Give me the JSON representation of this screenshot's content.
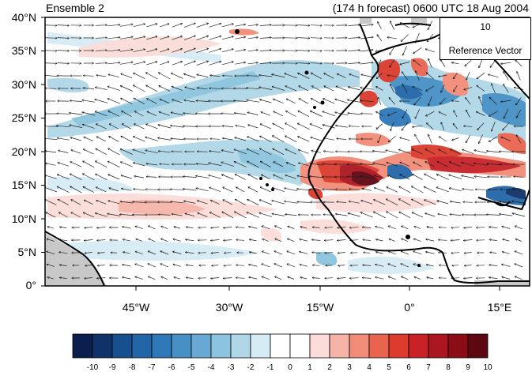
{
  "title_left": "Ensemble 2",
  "title_right": "(174 h forecast) 0600 UTC 18 Aug 2004",
  "lat_labels": [
    "40°N",
    "35°N",
    "30°N",
    "25°N",
    "20°N",
    "15°N",
    "10°N",
    "5°N",
    "0°"
  ],
  "lon_labels": [
    "45°W",
    "30°W",
    "15°W",
    "0°",
    "15°E"
  ],
  "reference_vector": {
    "value": "10",
    "label": "Reference Vector"
  },
  "colorbar": {
    "labels": [
      "-10",
      "-9",
      "-8",
      "-7",
      "-6",
      "-5",
      "-4",
      "-3",
      "-2",
      "-1",
      "0",
      "1",
      "2",
      "3",
      "4",
      "5",
      "6",
      "7",
      "8",
      "9",
      "10"
    ],
    "colors": [
      "#0a1f4d",
      "#0f3268",
      "#174f8f",
      "#2266a8",
      "#2e78b8",
      "#4690c6",
      "#67a8d4",
      "#8cc3de",
      "#afd7e8",
      "#d6ecf5",
      "#ffffff",
      "#ffffff",
      "#fbdcd9",
      "#f6b4a8",
      "#f18c78",
      "#e9644f",
      "#dc3b2e",
      "#c82227",
      "#ab1620",
      "#8b0d17",
      "#5d0811"
    ]
  },
  "map": {
    "lon_range": [
      -57,
      20
    ],
    "lat_range": [
      0,
      40
    ],
    "coast_color": "#000000",
    "land_fill_color": "#c8c8c8"
  }
}
